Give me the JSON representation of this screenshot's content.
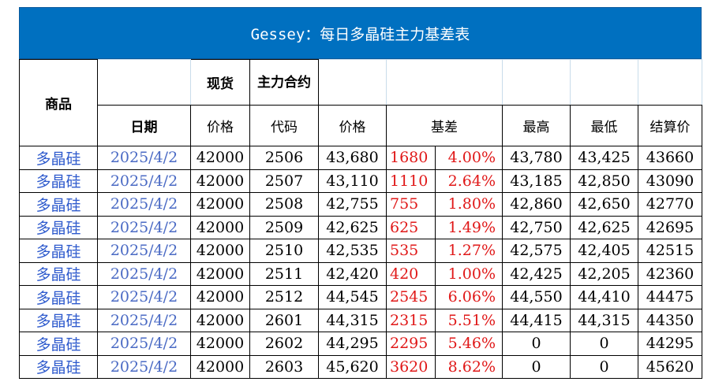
{
  "title": "Gessey：每日多晶硅主力基差表",
  "header": {
    "product": "商品",
    "spot": "现货",
    "main_contract": "主力合约",
    "date": "日期",
    "spot_price": "价格",
    "code": "代码",
    "price": "价格",
    "basis": "基差",
    "high": "最高",
    "low": "最低",
    "settle": "结算价"
  },
  "rows": [
    {
      "product": "多晶硅",
      "date": "2025/4/2",
      "spot": "42000",
      "code": "2506",
      "price": "43,680",
      "basis": "1680",
      "basis_pct": "4.00%",
      "high": "43,780",
      "low": "43,425",
      "settle": "43660"
    },
    {
      "product": "多晶硅",
      "date": "2025/4/2",
      "spot": "42000",
      "code": "2507",
      "price": "43,110",
      "basis": "1110",
      "basis_pct": "2.64%",
      "high": "43,185",
      "low": "42,850",
      "settle": "43090"
    },
    {
      "product": "多晶硅",
      "date": "2025/4/2",
      "spot": "42000",
      "code": "2508",
      "price": "42,755",
      "basis": "755",
      "basis_pct": "1.80%",
      "high": "42,860",
      "low": "42,650",
      "settle": "42770"
    },
    {
      "product": "多晶硅",
      "date": "2025/4/2",
      "spot": "42000",
      "code": "2509",
      "price": "42,625",
      "basis": "625",
      "basis_pct": "1.49%",
      "high": "42,750",
      "low": "42,625",
      "settle": "42695"
    },
    {
      "product": "多晶硅",
      "date": "2025/4/2",
      "spot": "42000",
      "code": "2510",
      "price": "42,535",
      "basis": "535",
      "basis_pct": "1.27%",
      "high": "42,575",
      "low": "42,405",
      "settle": "42515"
    },
    {
      "product": "多晶硅",
      "date": "2025/4/2",
      "spot": "42000",
      "code": "2511",
      "price": "42,420",
      "basis": "420",
      "basis_pct": "1.00%",
      "high": "42,425",
      "low": "42,205",
      "settle": "42360"
    },
    {
      "product": "多晶硅",
      "date": "2025/4/2",
      "spot": "42000",
      "code": "2512",
      "price": "44,545",
      "basis": "2545",
      "basis_pct": "6.06%",
      "high": "44,550",
      "low": "44,410",
      "settle": "44475"
    },
    {
      "product": "多晶硅",
      "date": "2025/4/2",
      "spot": "42000",
      "code": "2601",
      "price": "44,315",
      "basis": "2315",
      "basis_pct": "5.51%",
      "high": "44,415",
      "low": "44,315",
      "settle": "44350"
    },
    {
      "product": "多晶硅",
      "date": "2025/4/2",
      "spot": "42000",
      "code": "2602",
      "price": "44,295",
      "basis": "2295",
      "basis_pct": "5.46%",
      "high": "0",
      "low": "0",
      "settle": "44295"
    },
    {
      "product": "多晶硅",
      "date": "2025/4/2",
      "spot": "42000",
      "code": "2603",
      "price": "45,620",
      "basis": "3620",
      "basis_pct": "8.62%",
      "high": "0",
      "low": "0",
      "settle": "45620"
    }
  ]
}
